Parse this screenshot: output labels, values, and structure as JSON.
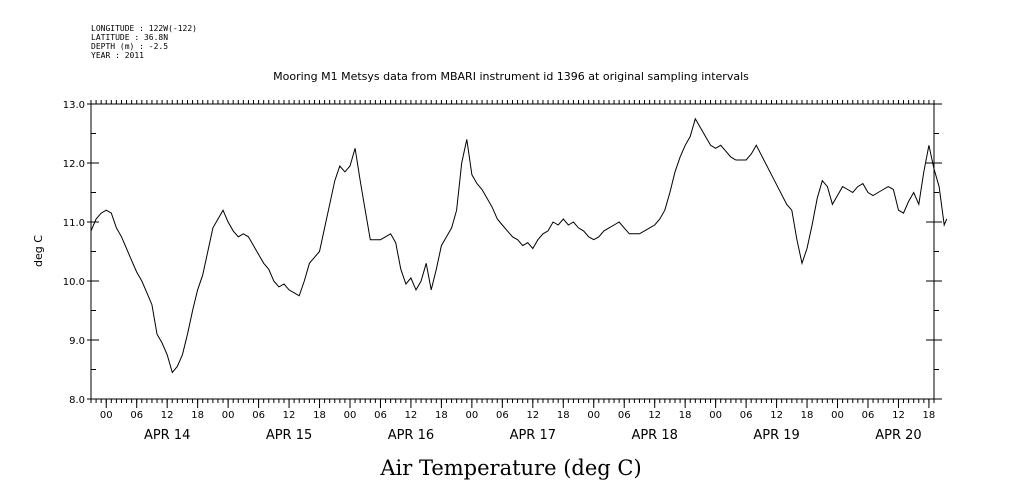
{
  "metadata": {
    "longitude": "LONGITUDE : 122W(-122)",
    "latitude": "LATITUDE : 36.8N",
    "depth": "DEPTH (m) : -2.5",
    "year": "YEAR : 2011"
  },
  "chart_data": {
    "type": "line",
    "title": "Mooring M1 Metsys data from MBARI instrument id 1396 at original sampling intervals",
    "xlabel": "Air Temperature (deg C)",
    "ylabel": "deg C",
    "ylim": [
      8.0,
      13.0
    ],
    "xlim": [
      "2011-04-13T21:00",
      "2011-04-20T19:00"
    ],
    "y_ticks": [
      "8.0",
      "9.0",
      "10.0",
      "11.0",
      "12.0",
      "13.0"
    ],
    "x_hour_ticks": [
      {
        "t": "2011-04-14T00:00",
        "label": "00"
      },
      {
        "t": "2011-04-14T06:00",
        "label": "06"
      },
      {
        "t": "2011-04-14T12:00",
        "label": "12"
      },
      {
        "t": "2011-04-14T18:00",
        "label": "18"
      },
      {
        "t": "2011-04-15T00:00",
        "label": "00"
      },
      {
        "t": "2011-04-15T06:00",
        "label": "06"
      },
      {
        "t": "2011-04-15T12:00",
        "label": "12"
      },
      {
        "t": "2011-04-15T18:00",
        "label": "18"
      },
      {
        "t": "2011-04-16T00:00",
        "label": "00"
      },
      {
        "t": "2011-04-16T06:00",
        "label": "06"
      },
      {
        "t": "2011-04-16T12:00",
        "label": "12"
      },
      {
        "t": "2011-04-16T18:00",
        "label": "18"
      },
      {
        "t": "2011-04-17T00:00",
        "label": "00"
      },
      {
        "t": "2011-04-17T06:00",
        "label": "06"
      },
      {
        "t": "2011-04-17T12:00",
        "label": "12"
      },
      {
        "t": "2011-04-17T18:00",
        "label": "18"
      },
      {
        "t": "2011-04-18T00:00",
        "label": "00"
      },
      {
        "t": "2011-04-18T06:00",
        "label": "06"
      },
      {
        "t": "2011-04-18T12:00",
        "label": "12"
      },
      {
        "t": "2011-04-18T18:00",
        "label": "18"
      },
      {
        "t": "2011-04-19T00:00",
        "label": "00"
      },
      {
        "t": "2011-04-19T06:00",
        "label": "06"
      },
      {
        "t": "2011-04-19T12:00",
        "label": "12"
      },
      {
        "t": "2011-04-19T18:00",
        "label": "18"
      },
      {
        "t": "2011-04-20T00:00",
        "label": "00"
      },
      {
        "t": "2011-04-20T06:00",
        "label": "06"
      },
      {
        "t": "2011-04-20T12:00",
        "label": "12"
      },
      {
        "t": "2011-04-20T18:00",
        "label": "18"
      }
    ],
    "x_day_labels": [
      {
        "t": "2011-04-14T12:00",
        "label": "APR 14"
      },
      {
        "t": "2011-04-15T12:00",
        "label": "APR 15"
      },
      {
        "t": "2011-04-16T12:00",
        "label": "APR 16"
      },
      {
        "t": "2011-04-17T12:00",
        "label": "APR 17"
      },
      {
        "t": "2011-04-18T12:00",
        "label": "APR 18"
      },
      {
        "t": "2011-04-19T12:00",
        "label": "APR 19"
      },
      {
        "t": "2011-04-20T12:00",
        "label": "APR 20"
      }
    ],
    "series": [
      {
        "color": "#000000",
        "points": [
          [
            "2011-04-13T21:00",
            10.85
          ],
          [
            "2011-04-13T22:00",
            11.05
          ],
          [
            "2011-04-13T23:00",
            11.15
          ],
          [
            "2011-04-14T00:00",
            11.2
          ],
          [
            "2011-04-14T01:00",
            11.15
          ],
          [
            "2011-04-14T02:00",
            10.9
          ],
          [
            "2011-04-14T03:00",
            10.75
          ],
          [
            "2011-04-14T04:00",
            10.55
          ],
          [
            "2011-04-14T05:00",
            10.35
          ],
          [
            "2011-04-14T06:00",
            10.15
          ],
          [
            "2011-04-14T07:00",
            10.0
          ],
          [
            "2011-04-14T08:00",
            9.8
          ],
          [
            "2011-04-14T09:00",
            9.6
          ],
          [
            "2011-04-14T10:00",
            9.1
          ],
          [
            "2011-04-14T11:00",
            8.95
          ],
          [
            "2011-04-14T12:00",
            8.75
          ],
          [
            "2011-04-14T13:00",
            8.45
          ],
          [
            "2011-04-14T14:00",
            8.55
          ],
          [
            "2011-04-14T15:00",
            8.75
          ],
          [
            "2011-04-14T16:00",
            9.1
          ],
          [
            "2011-04-14T17:00",
            9.5
          ],
          [
            "2011-04-14T18:00",
            9.85
          ],
          [
            "2011-04-14T19:00",
            10.1
          ],
          [
            "2011-04-14T20:00",
            10.5
          ],
          [
            "2011-04-14T21:00",
            10.9
          ],
          [
            "2011-04-14T22:00",
            11.05
          ],
          [
            "2011-04-14T23:00",
            11.2
          ],
          [
            "2011-04-15T00:00",
            11.0
          ],
          [
            "2011-04-15T01:00",
            10.85
          ],
          [
            "2011-04-15T02:00",
            10.75
          ],
          [
            "2011-04-15T03:00",
            10.8
          ],
          [
            "2011-04-15T04:00",
            10.75
          ],
          [
            "2011-04-15T05:00",
            10.6
          ],
          [
            "2011-04-15T06:00",
            10.45
          ],
          [
            "2011-04-15T07:00",
            10.3
          ],
          [
            "2011-04-15T08:00",
            10.2
          ],
          [
            "2011-04-15T09:00",
            10.0
          ],
          [
            "2011-04-15T10:00",
            9.9
          ],
          [
            "2011-04-15T11:00",
            9.95
          ],
          [
            "2011-04-15T12:00",
            9.85
          ],
          [
            "2011-04-15T13:00",
            9.8
          ],
          [
            "2011-04-15T14:00",
            9.75
          ],
          [
            "2011-04-15T15:00",
            10.0
          ],
          [
            "2011-04-15T16:00",
            10.3
          ],
          [
            "2011-04-15T17:00",
            10.4
          ],
          [
            "2011-04-15T18:00",
            10.5
          ],
          [
            "2011-04-15T19:00",
            10.9
          ],
          [
            "2011-04-15T20:00",
            11.3
          ],
          [
            "2011-04-15T21:00",
            11.7
          ],
          [
            "2011-04-15T22:00",
            11.95
          ],
          [
            "2011-04-15T23:00",
            11.85
          ],
          [
            "2011-04-16T00:00",
            11.95
          ],
          [
            "2011-04-16T01:00",
            12.25
          ],
          [
            "2011-04-16T02:00",
            11.7
          ],
          [
            "2011-04-16T03:00",
            11.2
          ],
          [
            "2011-04-16T04:00",
            10.7
          ],
          [
            "2011-04-16T05:00",
            10.7
          ],
          [
            "2011-04-16T06:00",
            10.7
          ],
          [
            "2011-04-16T07:00",
            10.75
          ],
          [
            "2011-04-16T08:00",
            10.8
          ],
          [
            "2011-04-16T09:00",
            10.65
          ],
          [
            "2011-04-16T10:00",
            10.2
          ],
          [
            "2011-04-16T11:00",
            9.95
          ],
          [
            "2011-04-16T12:00",
            10.05
          ],
          [
            "2011-04-16T13:00",
            9.85
          ],
          [
            "2011-04-16T14:00",
            10.0
          ],
          [
            "2011-04-16T15:00",
            10.3
          ],
          [
            "2011-04-16T16:00",
            9.85
          ],
          [
            "2011-04-16T17:00",
            10.2
          ],
          [
            "2011-04-16T18:00",
            10.6
          ],
          [
            "2011-04-16T19:00",
            10.75
          ],
          [
            "2011-04-16T20:00",
            10.9
          ],
          [
            "2011-04-16T21:00",
            11.2
          ],
          [
            "2011-04-16T22:00",
            12.0
          ],
          [
            "2011-04-16T23:00",
            12.4
          ],
          [
            "2011-04-17T00:00",
            11.8
          ],
          [
            "2011-04-17T01:00",
            11.65
          ],
          [
            "2011-04-17T02:00",
            11.55
          ],
          [
            "2011-04-17T03:00",
            11.4
          ],
          [
            "2011-04-17T04:00",
            11.25
          ],
          [
            "2011-04-17T05:00",
            11.05
          ],
          [
            "2011-04-17T06:00",
            10.95
          ],
          [
            "2011-04-17T07:00",
            10.85
          ],
          [
            "2011-04-17T08:00",
            10.75
          ],
          [
            "2011-04-17T09:00",
            10.7
          ],
          [
            "2011-04-17T10:00",
            10.6
          ],
          [
            "2011-04-17T11:00",
            10.65
          ],
          [
            "2011-04-17T12:00",
            10.55
          ],
          [
            "2011-04-17T13:00",
            10.7
          ],
          [
            "2011-04-17T14:00",
            10.8
          ],
          [
            "2011-04-17T15:00",
            10.85
          ],
          [
            "2011-04-17T16:00",
            11.0
          ],
          [
            "2011-04-17T17:00",
            10.95
          ],
          [
            "2011-04-17T18:00",
            11.05
          ],
          [
            "2011-04-17T19:00",
            10.95
          ],
          [
            "2011-04-17T20:00",
            11.0
          ],
          [
            "2011-04-17T21:00",
            10.9
          ],
          [
            "2011-04-17T22:00",
            10.85
          ],
          [
            "2011-04-17T23:00",
            10.75
          ],
          [
            "2011-04-18T00:00",
            10.7
          ],
          [
            "2011-04-18T01:00",
            10.75
          ],
          [
            "2011-04-18T02:00",
            10.85
          ],
          [
            "2011-04-18T03:00",
            10.9
          ],
          [
            "2011-04-18T04:00",
            10.95
          ],
          [
            "2011-04-18T05:00",
            11.0
          ],
          [
            "2011-04-18T06:00",
            10.9
          ],
          [
            "2011-04-18T07:00",
            10.8
          ],
          [
            "2011-04-18T08:00",
            10.8
          ],
          [
            "2011-04-18T09:00",
            10.8
          ],
          [
            "2011-04-18T10:00",
            10.85
          ],
          [
            "2011-04-18T11:00",
            10.9
          ],
          [
            "2011-04-18T12:00",
            10.95
          ],
          [
            "2011-04-18T13:00",
            11.05
          ],
          [
            "2011-04-18T14:00",
            11.2
          ],
          [
            "2011-04-18T15:00",
            11.5
          ],
          [
            "2011-04-18T16:00",
            11.85
          ],
          [
            "2011-04-18T17:00",
            12.1
          ],
          [
            "2011-04-18T18:00",
            12.3
          ],
          [
            "2011-04-18T19:00",
            12.45
          ],
          [
            "2011-04-18T20:00",
            12.75
          ],
          [
            "2011-04-18T21:00",
            12.6
          ],
          [
            "2011-04-18T22:00",
            12.45
          ],
          [
            "2011-04-18T23:00",
            12.3
          ],
          [
            "2011-04-19T00:00",
            12.25
          ],
          [
            "2011-04-19T01:00",
            12.3
          ],
          [
            "2011-04-19T02:00",
            12.2
          ],
          [
            "2011-04-19T03:00",
            12.1
          ],
          [
            "2011-04-19T04:00",
            12.05
          ],
          [
            "2011-04-19T05:00",
            12.05
          ],
          [
            "2011-04-19T06:00",
            12.05
          ],
          [
            "2011-04-19T07:00",
            12.15
          ],
          [
            "2011-04-19T08:00",
            12.3
          ],
          [
            "2011-04-19T11:00",
            11.8
          ],
          [
            "2011-04-19T14:00",
            11.3
          ],
          [
            "2011-04-19T15:00",
            11.2
          ],
          [
            "2011-04-19T16:00",
            10.7
          ],
          [
            "2011-04-19T17:00",
            10.3
          ],
          [
            "2011-04-19T18:00",
            10.55
          ],
          [
            "2011-04-19T19:00",
            10.95
          ],
          [
            "2011-04-19T20:00",
            11.4
          ],
          [
            "2011-04-19T21:00",
            11.7
          ],
          [
            "2011-04-19T22:00",
            11.6
          ],
          [
            "2011-04-19T23:00",
            11.3
          ],
          [
            "2011-04-20T00:00",
            11.45
          ],
          [
            "2011-04-20T01:00",
            11.6
          ],
          [
            "2011-04-20T02:00",
            11.55
          ],
          [
            "2011-04-20T03:00",
            11.5
          ],
          [
            "2011-04-20T04:00",
            11.6
          ],
          [
            "2011-04-20T05:00",
            11.65
          ],
          [
            "2011-04-20T06:00",
            11.5
          ],
          [
            "2011-04-20T07:00",
            11.45
          ],
          [
            "2011-04-20T08:00",
            11.5
          ],
          [
            "2011-04-20T09:00",
            11.55
          ],
          [
            "2011-04-20T10:00",
            11.6
          ],
          [
            "2011-04-20T11:00",
            11.55
          ],
          [
            "2011-04-20T12:00",
            11.2
          ],
          [
            "2011-04-20T13:00",
            11.15
          ],
          [
            "2011-04-20T14:00",
            11.35
          ],
          [
            "2011-04-20T15:00",
            11.5
          ],
          [
            "2011-04-20T16:00",
            11.3
          ],
          [
            "2011-04-20T17:00",
            11.85
          ],
          [
            "2011-04-20T18:00",
            12.3
          ],
          [
            "2011-04-20T19:00",
            11.9
          ],
          [
            "2011-04-20T20:00",
            11.6
          ],
          [
            "2011-04-20T21:00",
            10.95
          ],
          [
            "2011-04-20T21:30",
            11.05
          ]
        ]
      }
    ]
  }
}
